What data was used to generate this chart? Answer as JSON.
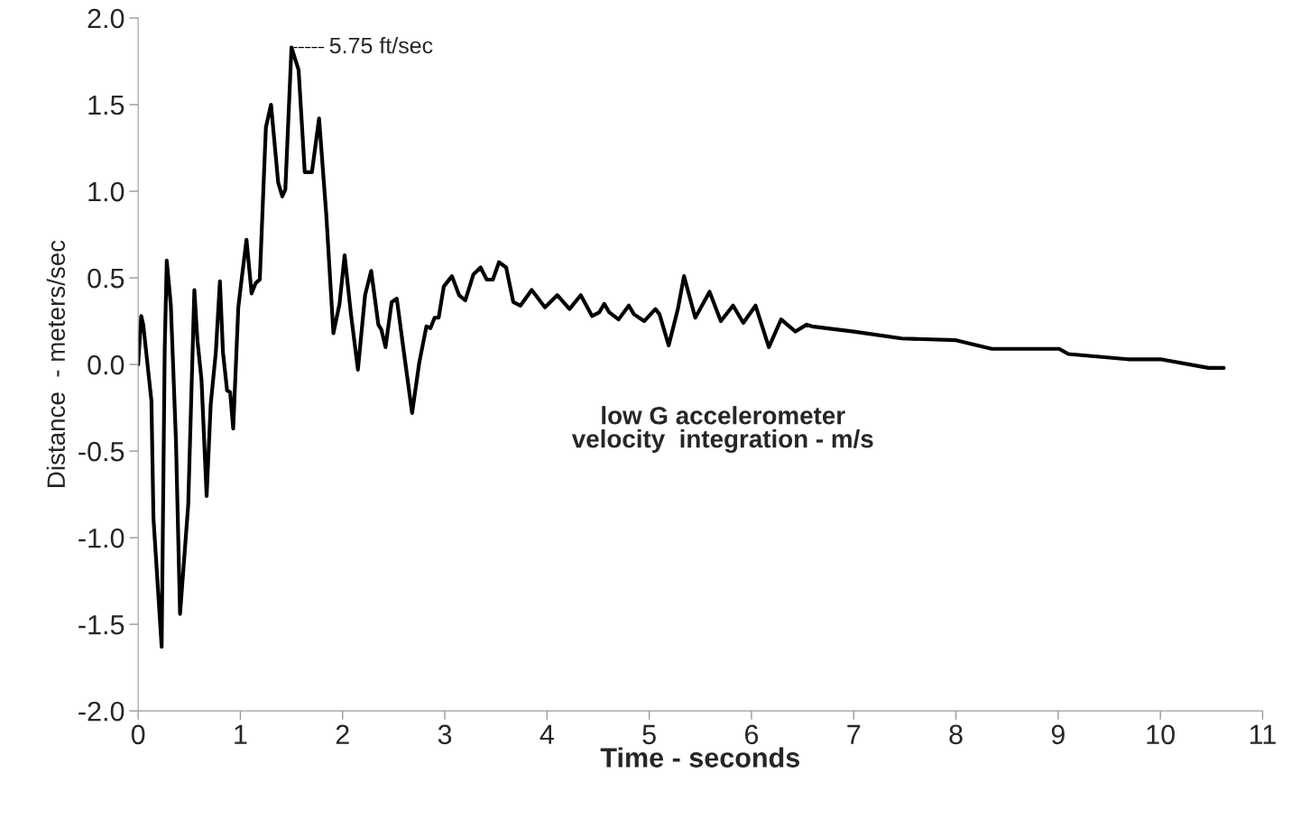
{
  "chart_data": {
    "type": "line",
    "xlabel": "Time - seconds",
    "ylabel": "Distance  - meters/sec",
    "xlim": [
      0,
      11
    ],
    "xticks": [
      0,
      1,
      2,
      3,
      4,
      5,
      6,
      7,
      8,
      9,
      10,
      11
    ],
    "ylim": [
      -2.0,
      2.0
    ],
    "yticks": [
      {
        "value": -2,
        "label": "-2.0"
      },
      {
        "value": -1.5,
        "label": "-1.5"
      },
      {
        "value": -1,
        "label": "-1.0"
      },
      {
        "value": -0.5,
        "label": "-0.5"
      },
      {
        "value": 0,
        "label": "0.0"
      },
      {
        "value": 0.5,
        "label": "0.5"
      },
      {
        "value": 1,
        "label": "1.0"
      },
      {
        "value": 1.5,
        "label": "1.5"
      },
      {
        "value": 2,
        "label": "2.0"
      }
    ],
    "grid": false,
    "marker": "none",
    "line_style": "solid",
    "annotations": [
      {
        "text": "5.75 ft/sec",
        "x": 1.5,
        "y": 1.83
      },
      "low G accelerometer\nvelocity  integration - m/s"
    ],
    "series": [
      {
        "color": "#000000",
        "x": [
          0,
          0.03,
          0.05,
          0.13,
          0.15,
          0.23,
          0.26,
          0.28,
          0.32,
          0.37,
          0.41,
          0.49,
          0.55,
          0.58,
          0.62,
          0.67,
          0.71,
          0.76,
          0.8,
          0.83,
          0.87,
          0.9,
          0.93,
          0.98,
          1.01,
          1.06,
          1.11,
          1.15,
          1.19,
          1.24,
          1.25,
          1.3,
          1.37,
          1.41,
          1.44,
          1.5,
          1.57,
          1.63,
          1.7,
          1.77,
          1.84,
          1.91,
          1.97,
          2.02,
          2.08,
          2.15,
          2.22,
          2.28,
          2.35,
          2.38,
          2.42,
          2.48,
          2.53,
          2.6,
          2.68,
          2.75,
          2.82,
          2.86,
          2.9,
          2.94,
          2.99,
          3.07,
          3.14,
          3.2,
          3.28,
          3.35,
          3.41,
          3.47,
          3.53,
          3.6,
          3.67,
          3.74,
          3.85,
          3.98,
          4.1,
          4.22,
          4.33,
          4.44,
          4.51,
          4.56,
          4.61,
          4.7,
          4.8,
          4.85,
          4.95,
          5.06,
          5.1,
          5.19,
          5.28,
          5.34,
          5.45,
          5.59,
          5.7,
          5.82,
          5.92,
          6.04,
          6.17,
          6.29,
          6.43,
          6.54,
          6.59,
          7,
          7.47,
          8,
          8.35,
          9.01,
          9.1,
          9.68,
          10,
          10.47,
          10.62
        ],
        "values": [
          0,
          0.28,
          0.23,
          -0.21,
          -0.89,
          -1.63,
          0.09,
          0.6,
          0.34,
          -0.44,
          -1.44,
          -0.81,
          0.43,
          0.14,
          -0.09,
          -0.76,
          -0.23,
          0.07,
          0.48,
          0.07,
          -0.15,
          -0.16,
          -0.37,
          0.33,
          0.48,
          0.72,
          0.41,
          0.47,
          0.49,
          1.23,
          1.37,
          1.5,
          1.05,
          0.97,
          1.01,
          1.83,
          1.7,
          1.11,
          1.11,
          1.42,
          0.87,
          0.18,
          0.35,
          0.63,
          0.3,
          -0.03,
          0.4,
          0.54,
          0.23,
          0.2,
          0.1,
          0.36,
          0.38,
          0.07,
          -0.28,
          0.01,
          0.22,
          0.21,
          0.27,
          0.27,
          0.45,
          0.51,
          0.4,
          0.37,
          0.52,
          0.56,
          0.49,
          0.49,
          0.59,
          0.56,
          0.36,
          0.34,
          0.43,
          0.33,
          0.4,
          0.32,
          0.4,
          0.28,
          0.3,
          0.35,
          0.3,
          0.26,
          0.34,
          0.29,
          0.25,
          0.32,
          0.29,
          0.11,
          0.32,
          0.51,
          0.27,
          0.42,
          0.25,
          0.34,
          0.24,
          0.34,
          0.1,
          0.26,
          0.19,
          0.23,
          0.22,
          0.19,
          0.15,
          0.14,
          0.09,
          0.09,
          0.06,
          0.03,
          0.03,
          -0.02,
          -0.02
        ]
      }
    ]
  }
}
